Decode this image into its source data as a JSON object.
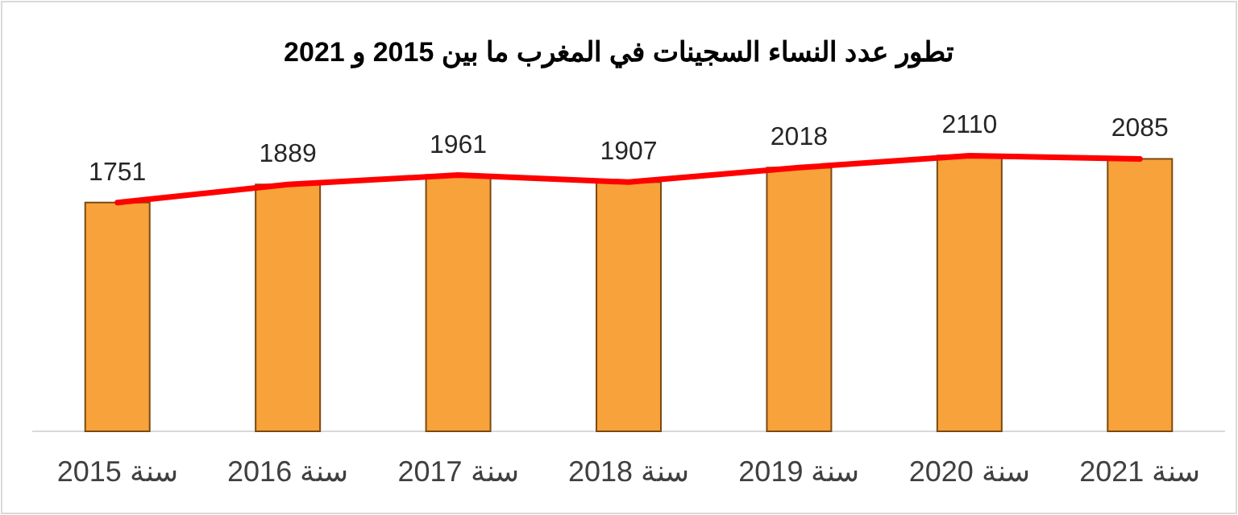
{
  "chart_data": {
    "type": "bar",
    "title": "تطور عدد النساء السجينات في المغرب ما بين 2015 و 2021",
    "categories": [
      "سنة 2015",
      "سنة 2016",
      "سنة 2017",
      "سنة 2018",
      "سنة 2019",
      "سنة 2020",
      "سنة 2021"
    ],
    "series": [
      {
        "color": "#f7a23a",
        "values": [
          1751,
          1889,
          1961,
          1907,
          2018,
          2110,
          2085
        ],
        "value_labels": [
          "1751",
          "1889",
          "1961",
          "1907",
          "2018",
          "2110",
          "2085"
        ]
      },
      {
        "type": "line",
        "color": "#ff0000",
        "values": [
          1751,
          1889,
          1961,
          1907,
          2018,
          2110,
          2085
        ]
      }
    ],
    "tick_labels": "x"
  }
}
